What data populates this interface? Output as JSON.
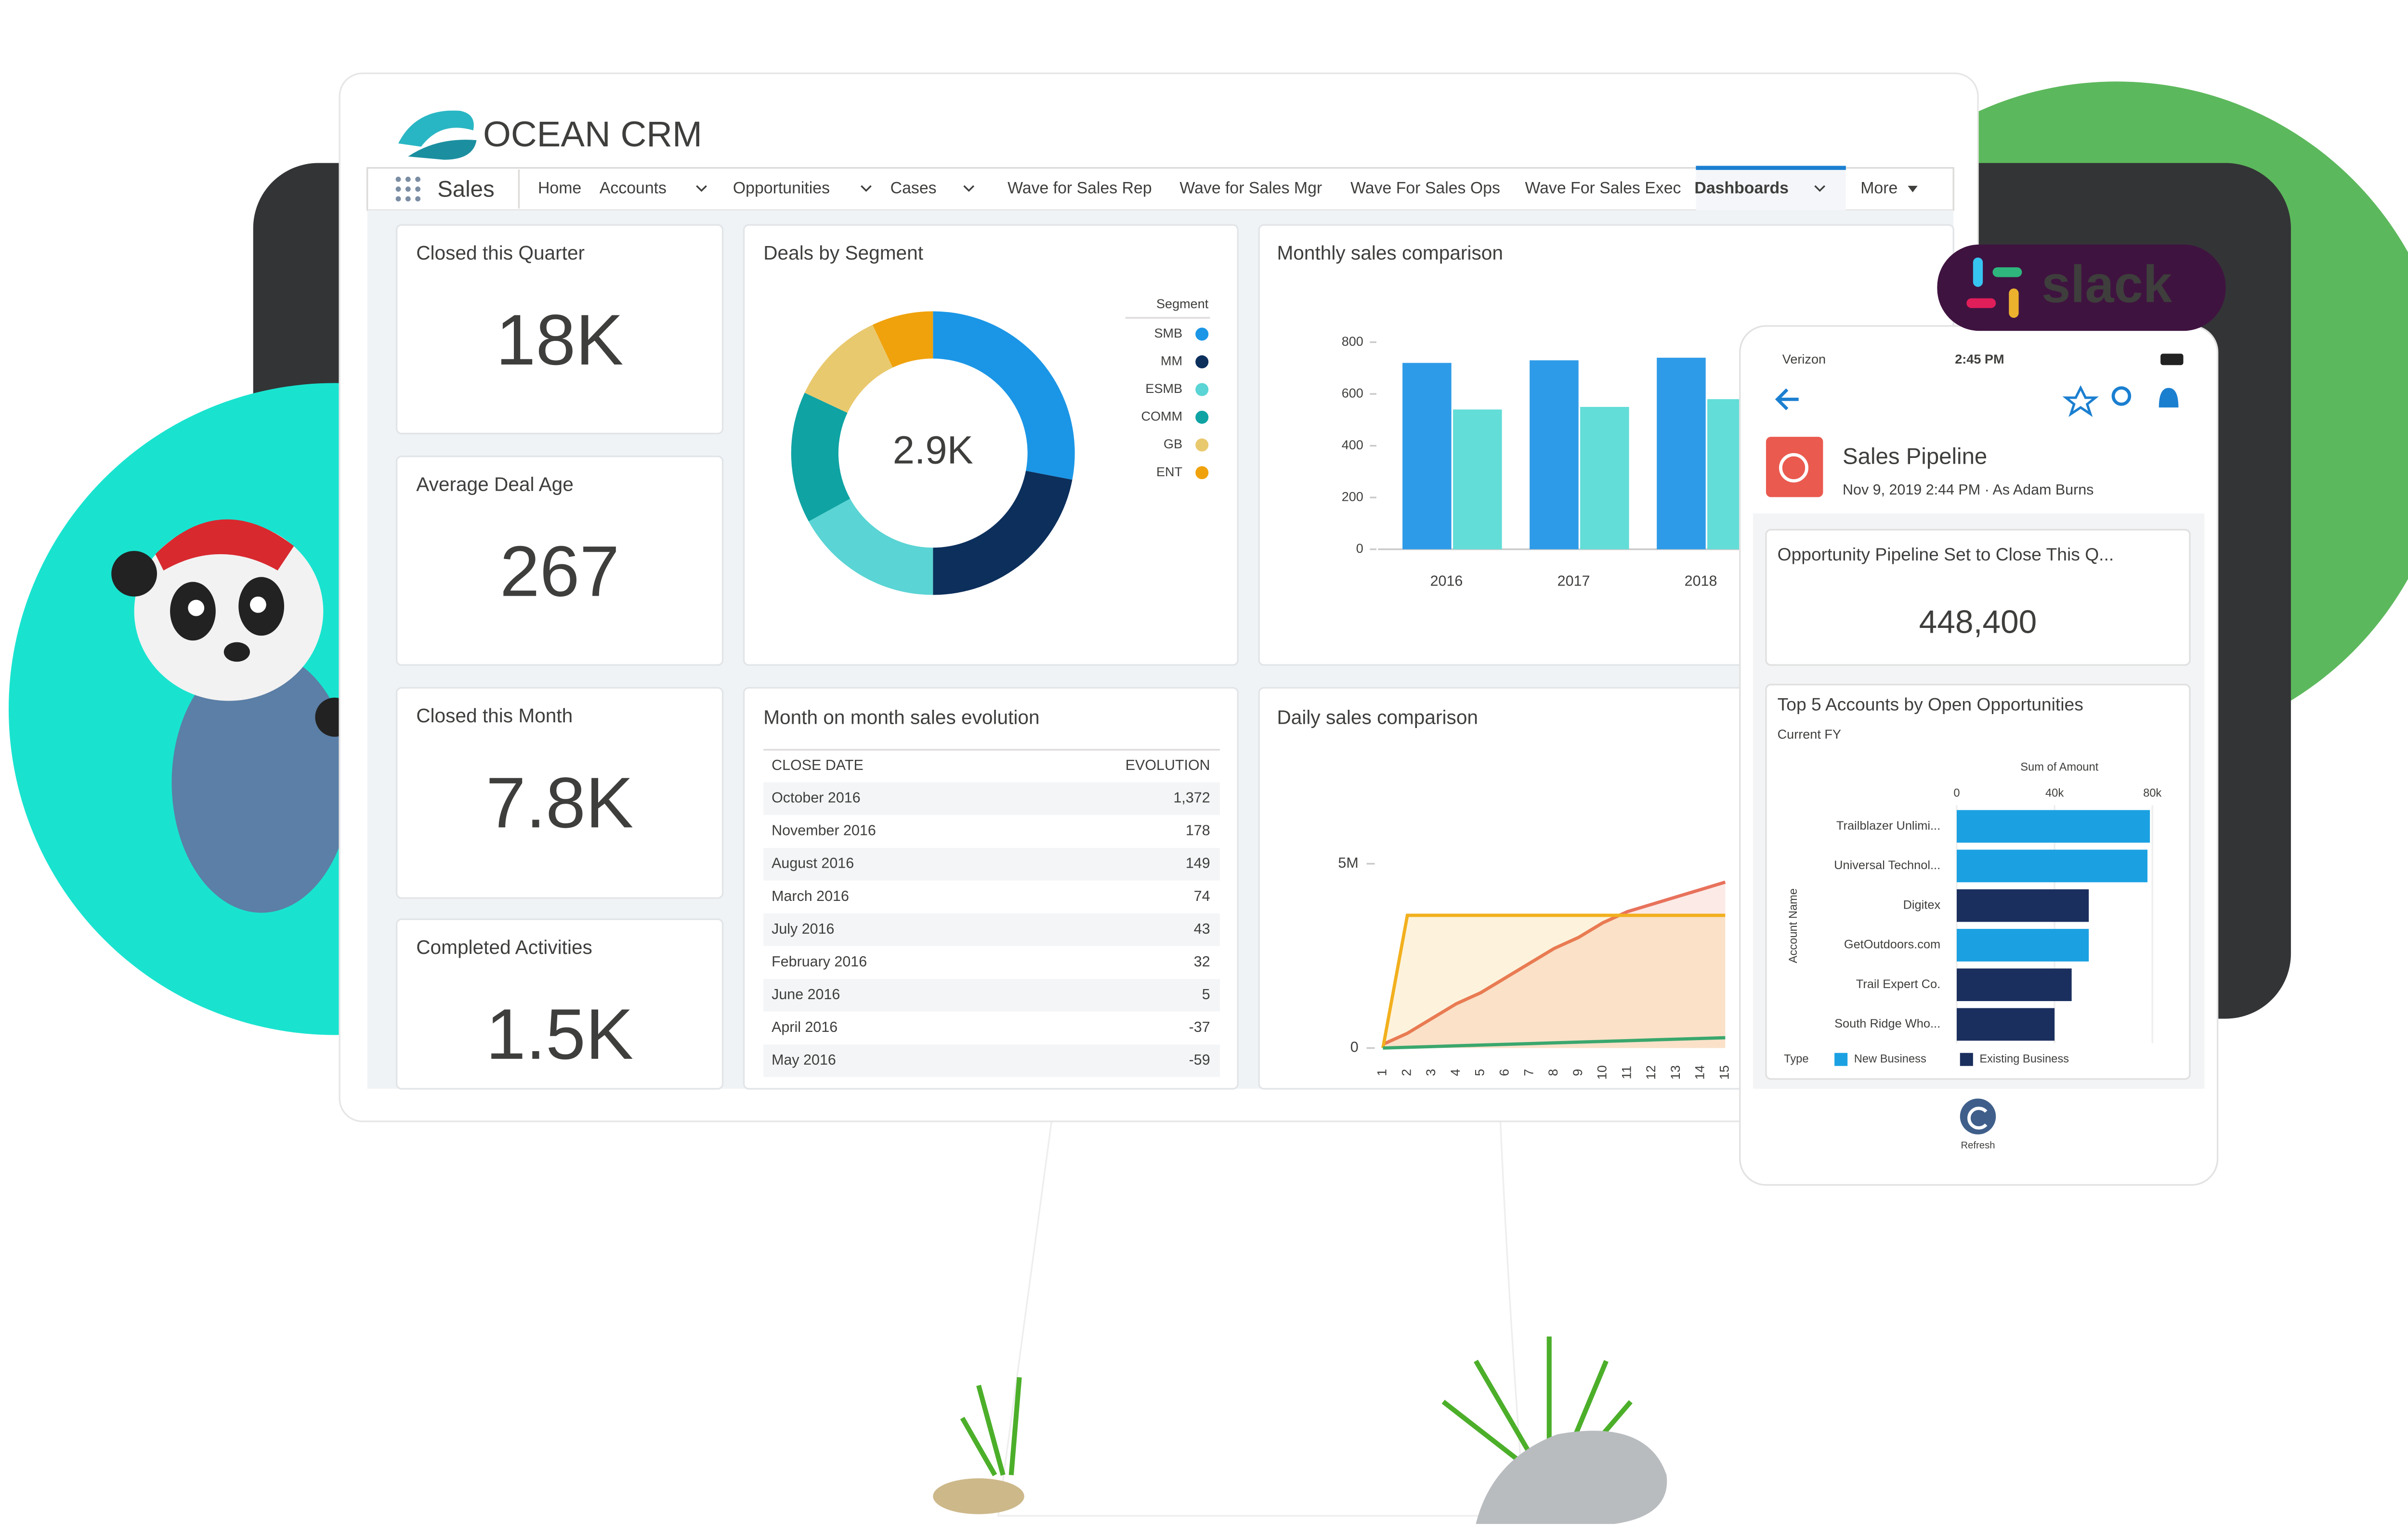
{
  "header": {
    "brand": "OCEAN CRM",
    "app": "Sales",
    "nav": [
      "Home",
      "Accounts",
      "Opportunities",
      "Cases",
      "Wave for Sales Rep",
      "Wave for Sales Mgr",
      "Wave For Sales Ops",
      "Wave For Sales Exec",
      "Dashboards",
      "More"
    ]
  },
  "kpis": [
    {
      "label": "Closed this Quarter",
      "value": "18K"
    },
    {
      "label": "Average Deal Age",
      "value": "267"
    },
    {
      "label": "Closed this Month",
      "value": "7.8K"
    },
    {
      "label": "Completed Activities",
      "value": "1.5K"
    }
  ],
  "table": {
    "title": "Month on month sales evolution",
    "columns": [
      "CLOSE DATE",
      "EVOLUTION"
    ],
    "rows": [
      [
        "October 2016",
        "1,372"
      ],
      [
        "November 2016",
        "178"
      ],
      [
        "August 2016",
        "149"
      ],
      [
        "March 2016",
        "74"
      ],
      [
        "July 2016",
        "43"
      ],
      [
        "February 2016",
        "32"
      ],
      [
        "June 2016",
        "5"
      ],
      [
        "April 2016",
        "-37"
      ],
      [
        "May 2016",
        "-59"
      ]
    ]
  },
  "chart_data": [
    {
      "type": "pie",
      "title": "Deals by Segment",
      "center_label": "2.9K",
      "legend_title": "Segment",
      "categories": [
        "SMB",
        "MM",
        "ESMB",
        "COMM",
        "GB",
        "ENT"
      ],
      "values": [
        28,
        22,
        17,
        15,
        11,
        7
      ],
      "colors": [
        "#1b96e6",
        "#0c2f5c",
        "#5ad4d4",
        "#0fa3a3",
        "#e9c96e",
        "#f0a20c"
      ]
    },
    {
      "type": "bar",
      "title": "Monthly sales comparison",
      "categories": [
        "2016",
        "2017",
        "2018"
      ],
      "series": [
        {
          "color": "#2e9be8",
          "values": [
            720,
            730,
            740
          ]
        },
        {
          "color": "#62ddd7",
          "values": [
            540,
            550,
            580
          ]
        }
      ],
      "ylim": [
        0,
        850
      ],
      "yticks": [
        0,
        200,
        400,
        600,
        800
      ]
    },
    {
      "type": "line",
      "title": "Daily sales comparison",
      "categories": [
        "1",
        "2",
        "3",
        "4",
        "5",
        "6",
        "7",
        "8",
        "9",
        "10",
        "11",
        "12",
        "13",
        "14",
        "15"
      ],
      "series": [
        {
          "color": "#e8725c",
          "values": [
            0.1,
            0.4,
            0.8,
            1.2,
            1.5,
            1.9,
            2.3,
            2.7,
            3.0,
            3.4,
            3.7,
            3.9,
            4.1,
            4.3,
            4.5
          ]
        },
        {
          "color": "#f2b01e",
          "values": [
            0,
            3.6,
            3.6,
            3.6,
            3.6,
            3.6,
            3.6,
            3.6,
            3.6,
            3.6,
            3.6,
            3.6,
            3.6,
            3.6,
            3.6
          ]
        },
        {
          "color": "#3aa76d",
          "values": [
            0,
            0.02,
            0.04,
            0.06,
            0.08,
            0.1,
            0.12,
            0.14,
            0.16,
            0.18,
            0.2,
            0.22,
            0.24,
            0.26,
            0.28
          ]
        }
      ],
      "ylim": [
        0,
        6.5
      ],
      "yticks": [
        0,
        {
          "value": 5,
          "label": "5M"
        }
      ]
    },
    {
      "type": "bar",
      "orientation": "horizontal",
      "title": "Top 5 Accounts by Open Opportunities",
      "subtitle": "Current FY",
      "x_label": "Sum of Amount",
      "y_label": "Account Name",
      "legend_title": "Type",
      "categories": [
        "Trailblazer Unlimi...",
        "Universal Technol...",
        "Digitex",
        "GetOutdoors.com",
        "Trail Expert Co.",
        "South Ridge Who..."
      ],
      "series": [
        {
          "name": "New Business",
          "color": "#1ba1e2",
          "values": [
            79,
            78,
            null,
            54,
            null,
            null
          ]
        },
        {
          "name": "Existing Business",
          "color": "#1b2f5e",
          "values": [
            null,
            null,
            54,
            null,
            47,
            40
          ]
        }
      ],
      "xlim": [
        0,
        80
      ],
      "xticks": [
        0,
        {
          "value": 40,
          "label": "40k"
        },
        {
          "value": 80,
          "label": "80k"
        }
      ]
    }
  ],
  "phone": {
    "carrier": "Verizon",
    "time": "2:45 PM",
    "title": "Sales Pipeline",
    "meta": "Nov 9, 2019 2:44 PM  ·  As Adam Burns",
    "metric_label": "Opportunity Pipeline Set to Close This Q...",
    "metric_value": "448,400",
    "refresh": "Refresh"
  },
  "badge": "slack"
}
